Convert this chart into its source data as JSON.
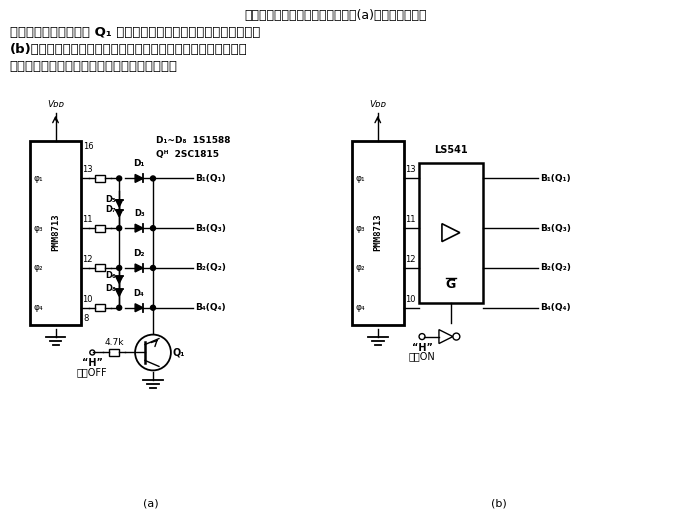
{
  "bg_color": "#ffffff",
  "text_color": "#000000",
  "body_lines": [
    "所示是步进电机的无助磁电路。图(a)在功率晋体管间",
    "配置了二极管逻辑，由 Q₁ 的导通与截止来适当地控制输出电压；图",
    "(b)中以缓冲器代替二极管来控制功率晋体管的输出信号。由于无",
    "磁电路降低了电流消耗，故可以抑制线圈发热。"
  ],
  "label_a": "(a)",
  "label_b": "(b)",
  "note_d": "D₁~D₈  1S1588",
  "note_q": "Qᴴ  2SC1815",
  "ic_label": "PMM8713",
  "vdd": "Vᴅᴅ",
  "pin16": "16",
  "pin8": "8",
  "phi1": "φ₁",
  "phi2": "φ₂",
  "phi3": "φ₃",
  "phi4": "φ₄",
  "pin13": "13",
  "pin11": "11",
  "pin12": "12",
  "pin10": "10",
  "D1": "D₁",
  "D2": "D₂",
  "D3": "D₃",
  "D4": "D₄",
  "D5": "D₅",
  "D6": "D₆",
  "D7": "D₇",
  "D8": "D₈",
  "B1": "B₁(Q₁)",
  "B2": "B₂(Q₂)",
  "B3": "B₃(Q₃)",
  "B4": "B₄(Q₄)",
  "R47k": "4.7k",
  "Q1": "Q₁",
  "H_label": "“H”",
  "off_label": "助磁OFF",
  "on_label": "助磁ON",
  "ls541": "LS541",
  "G_bar": "G̅"
}
